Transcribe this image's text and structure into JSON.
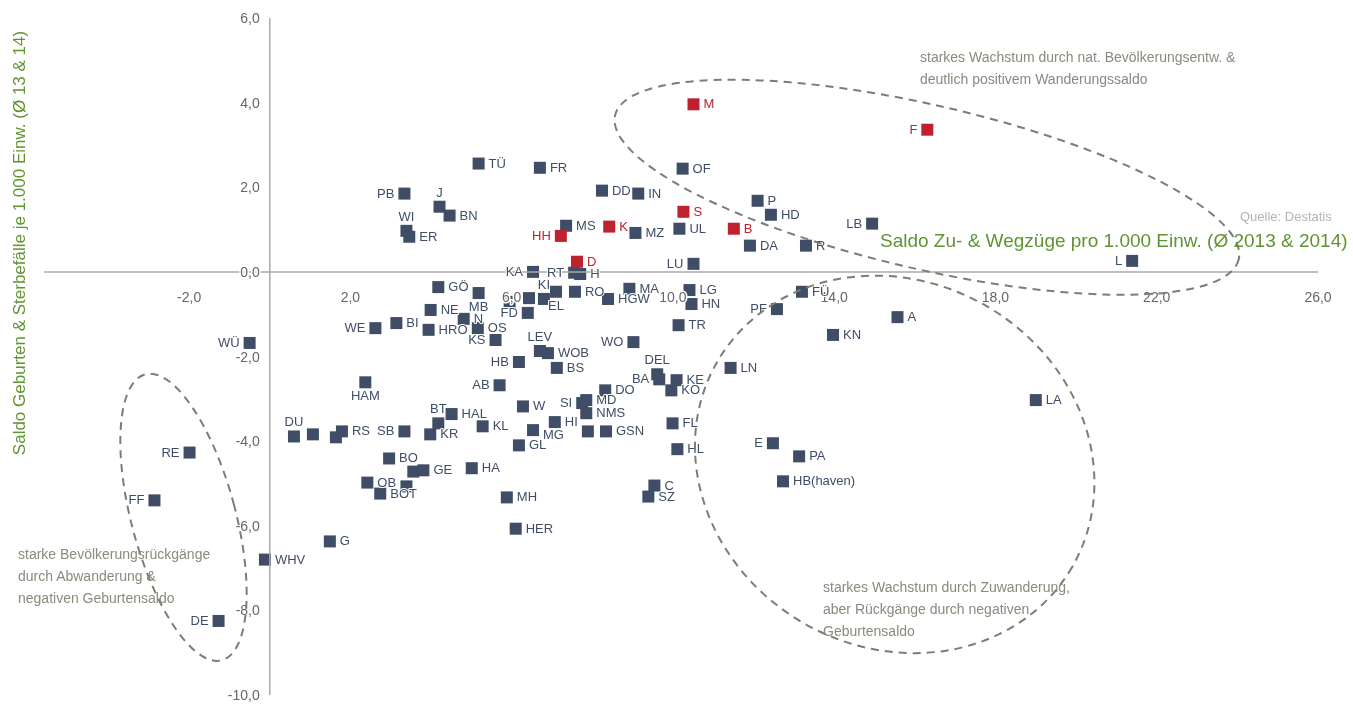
{
  "chart_data": {
    "type": "scatter",
    "xlabel": "Saldo Zu- & Wegzüge pro 1.000 Einw. (Ø 2013 & 2014)",
    "ylabel": "Saldo Geburten & Sterbefälle je 1.000 Einw. (Ø 13 & 14)",
    "xlim": [
      -5.6,
      26
    ],
    "xticks": [
      {
        "value": -2,
        "label": "-2,0"
      },
      {
        "value": 2,
        "label": "2,0"
      },
      {
        "value": 6,
        "label": "6,0"
      },
      {
        "value": 10,
        "label": "10,0"
      },
      {
        "value": 14,
        "label": "14,0"
      },
      {
        "value": 18,
        "label": "18,0"
      },
      {
        "value": 22,
        "label": "22,0"
      },
      {
        "value": 26,
        "label": "26,0"
      }
    ],
    "ylim": [
      -10,
      6
    ],
    "yticks": [
      {
        "value": -10,
        "label": "-10,0"
      },
      {
        "value": -8,
        "label": "-8,0"
      },
      {
        "value": -6,
        "label": "-6,0"
      },
      {
        "value": -4,
        "label": "-4,0"
      },
      {
        "value": -2,
        "label": "-2,0"
      },
      {
        "value": 0,
        "label": "0,0"
      },
      {
        "value": 2,
        "label": "2,0"
      },
      {
        "value": 4,
        "label": "4,0"
      },
      {
        "value": 6,
        "label": "6,0"
      }
    ],
    "marker": "square",
    "annotations": [
      "starkes Wachstum durch nat. Bevölkerungsentw. &\ndeutlich positivem Wanderungssaldo",
      "starkes Wachstum durch Zuwanderung,\naber Rückgänge durch negativen\nGeburtensaldo",
      "starke Bevölkerungsrückgänge\ndurch Abwanderung &\nnegativen Geburtensaldo",
      "Quelle: Destatis"
    ],
    "series": [
      {
        "color": "#3f4e66",
        "x": [
          5.18,
          6.7,
          3.34,
          4.21,
          4.46,
          3.39,
          3.46,
          8.24,
          9.14,
          10.24,
          12.1,
          12.43,
          14.94,
          7.35,
          9.07,
          10.16,
          11.91,
          13.3,
          21.39,
          6.53,
          7.7,
          7.55,
          10.51,
          4.18,
          5.18,
          5.95,
          6.43,
          6.8,
          7.1,
          7.57,
          6.4,
          8.39,
          8.92,
          10.41,
          10.46,
          10.14,
          13.2,
          12.58,
          15.57,
          13.97,
          11.43,
          19.0,
          12.48,
          13.13,
          12.73,
          3.99,
          4.81,
          2.62,
          3.14,
          3.94,
          5.16,
          5.6,
          6.7,
          6.9,
          6.18,
          7.12,
          9.02,
          5.7,
          2.37,
          6.28,
          7.75,
          7.85,
          7.85,
          8.32,
          7.07,
          6.53,
          8.34,
          7.89,
          6.18,
          9.61,
          9.66,
          10.09,
          9.96,
          9.99,
          10.11,
          9.54,
          9.39,
          -0.5,
          -1.99,
          -2.86,
          -1.27,
          -0.12,
          1.49,
          4.51,
          5.28,
          4.18,
          3.98,
          3.34,
          0.6,
          1.07,
          1.64,
          1.79,
          2.96,
          2.42,
          2.74,
          3.56,
          3.81,
          3.39,
          5.01,
          5.88,
          6.1
        ],
        "values": [
          2.56,
          2.46,
          1.85,
          1.54,
          1.33,
          0.97,
          0.83,
          1.92,
          1.85,
          2.44,
          1.68,
          1.35,
          1.14,
          1.09,
          0.92,
          1.02,
          0.62,
          0.62,
          0.26,
          0.0,
          -0.05,
          -0.02,
          0.19,
          -0.36,
          -0.5,
          -0.71,
          -0.62,
          -0.64,
          -0.47,
          -0.47,
          -0.97,
          -0.64,
          -0.4,
          -0.43,
          -0.76,
          -1.26,
          -0.47,
          -0.88,
          -1.07,
          -1.49,
          -2.27,
          -3.03,
          -4.05,
          -4.36,
          -4.95,
          -0.9,
          -1.11,
          -1.33,
          -1.21,
          -1.37,
          -1.33,
          -1.61,
          -1.87,
          -1.92,
          -2.13,
          -2.27,
          -1.66,
          -2.68,
          -2.61,
          -3.18,
          -3.1,
          -3.03,
          -3.34,
          -2.8,
          -3.55,
          -3.74,
          -3.77,
          -3.77,
          -4.1,
          -2.42,
          -2.54,
          -2.56,
          -2.8,
          -3.58,
          -4.19,
          -5.05,
          -5.31,
          -1.68,
          -4.27,
          -5.4,
          -8.25,
          -6.8,
          -6.37,
          -3.36,
          -3.65,
          -3.58,
          -3.84,
          -3.77,
          -3.89,
          -3.84,
          -3.91,
          -3.77,
          -4.41,
          -4.98,
          -5.24,
          -4.72,
          -4.69,
          -5.07,
          -4.64,
          -5.33,
          -6.07
        ],
        "value_labels": [
          "TÜ",
          "FR",
          "PB",
          "J",
          "BN",
          "WI",
          "ER",
          "DD",
          "IN",
          "OF",
          "P",
          "HD",
          "LB",
          "MS",
          "MZ",
          "UL",
          "DA",
          "R",
          "L",
          "KA",
          "H",
          "RT",
          "LU",
          "GÖ",
          "MB",
          null,
          null,
          "KI",
          "EL",
          "RO",
          "FD",
          "HGW",
          "MA",
          "LG",
          "HN",
          "TR",
          "FÜ",
          "PF",
          "A",
          "KN",
          "LN",
          "LA",
          "E",
          "PA",
          "HB(haven)",
          "NE",
          "N",
          "WE",
          "BI",
          "HRO",
          "OS",
          "KS",
          "LEV",
          "WOB",
          "HB",
          "BS",
          "WO",
          "AB",
          "HAM",
          "W",
          "SI",
          "MD",
          "NMS",
          "DO",
          "HI",
          "MG",
          "GSN",
          null,
          "GL",
          "DEL",
          "BA",
          "KE",
          "KO",
          "FL",
          "HL",
          "C",
          "SZ",
          "WÜ",
          "RE",
          "FF",
          "DE",
          "WHV",
          "G",
          "HAL",
          "KL",
          "BT",
          "KR",
          "SB",
          "DU",
          null,
          null,
          "RS",
          "BO",
          "OB",
          "BOT",
          null,
          "GE",
          null,
          "HA",
          "MH",
          "HER"
        ]
      },
      {
        "color": "#c0212f",
        "x": [
          10.51,
          16.31,
          10.26,
          8.42,
          11.51,
          7.22,
          7.62
        ],
        "values": [
          3.96,
          3.36,
          1.42,
          1.07,
          1.02,
          0.85,
          0.24
        ],
        "value_labels": [
          "M",
          "F",
          "S",
          "K",
          "B",
          "HH",
          "D"
        ]
      }
    ]
  }
}
